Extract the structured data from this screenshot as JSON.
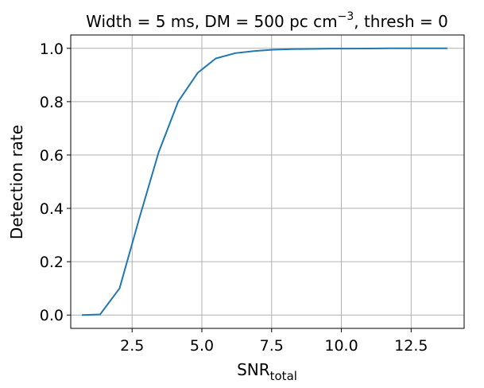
{
  "chart_data": {
    "type": "line",
    "title": {
      "prefix": "Width",
      "eq": " = ",
      "width_val": "5 ms, DM",
      "dm_val": "500 pc cm",
      "dm_exp": "−3",
      "after_exp": ", thresh",
      "thresh_val": "0"
    },
    "xlabel": {
      "main": "SNR",
      "sub": "total"
    },
    "ylabel": "Detection rate",
    "xlim": [
      0.3,
      14.4
    ],
    "ylim": [
      -0.05,
      1.05
    ],
    "xticks": [
      2.5,
      5.0,
      7.5,
      10.0,
      12.5
    ],
    "xtick_labels": [
      "2.5",
      "5.0",
      "7.5",
      "10.0",
      "12.5"
    ],
    "yticks": [
      0.0,
      0.2,
      0.4,
      0.6,
      0.8,
      1.0
    ],
    "ytick_labels": [
      "0.0",
      "0.2",
      "0.4",
      "0.6",
      "0.8",
      "1.0"
    ],
    "grid": true,
    "line_color": "#1f77b4",
    "grid_color": "#b0b0b0",
    "series": [
      {
        "x": [
          0.7,
          1.35,
          2.05,
          2.75,
          3.45,
          4.15,
          4.85,
          5.5,
          6.2,
          6.9,
          7.55,
          8.25,
          8.95,
          9.65,
          10.35,
          11.0,
          11.7,
          12.4,
          13.1,
          13.8
        ],
        "y": [
          0.0,
          0.002,
          0.1,
          0.36,
          0.61,
          0.8,
          0.908,
          0.962,
          0.982,
          0.99,
          0.995,
          0.997,
          0.998,
          0.999,
          0.999,
          0.9995,
          1.0,
          1.0,
          1.0,
          1.0
        ]
      }
    ]
  }
}
